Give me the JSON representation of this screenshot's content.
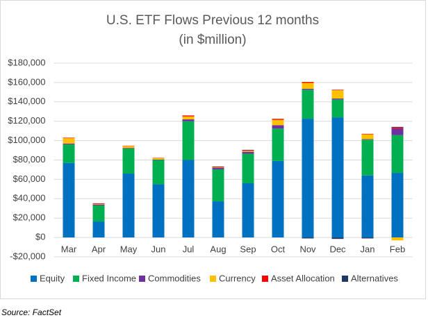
{
  "chart_data": {
    "type": "stacked_bar",
    "title": "U.S. ETF Flows Previous 12 months",
    "subtitle": "(in $million)",
    "source": "Source: FactSet",
    "categories": [
      "Mar",
      "Apr",
      "May",
      "Jun",
      "Jul",
      "Aug",
      "Sep",
      "Oct",
      "Nov",
      "Dec",
      "Jan",
      "Feb"
    ],
    "series": [
      {
        "name": "Equity",
        "color": "#0070c0",
        "values": [
          77000,
          16500,
          66000,
          55000,
          80000,
          37300,
          56000,
          79000,
          122600,
          124000,
          64000,
          66700
        ]
      },
      {
        "name": "Fixed Income",
        "color": "#00b050",
        "values": [
          19000,
          16500,
          26000,
          25000,
          40000,
          33000,
          30500,
          33500,
          30000,
          18500,
          37000,
          39000
        ]
      },
      {
        "name": "Commodities",
        "color": "#7030a0",
        "values": [
          1000,
          1000,
          500,
          500,
          2000,
          1500,
          2000,
          3500,
          1000,
          1000,
          500,
          7000
        ]
      },
      {
        "name": "Currency",
        "color": "#ffc000",
        "values": [
          5500,
          500,
          2000,
          1500,
          3000,
          500,
          1000,
          5500,
          6000,
          8500,
          5000,
          -3000
        ]
      },
      {
        "name": "Asset Allocation",
        "color": "#ff0000",
        "values": [
          500,
          500,
          300,
          300,
          1000,
          500,
          500,
          1000,
          1000,
          500,
          500,
          1000
        ]
      },
      {
        "name": "Alternatives",
        "color": "#1f3864",
        "values": [
          0,
          300,
          0,
          0,
          0,
          500,
          500,
          0,
          -1000,
          -1500,
          -1000,
          500
        ]
      }
    ],
    "ylim": [
      -20000,
      180000
    ],
    "yticks": [
      {
        "value": -20000,
        "label": "-$20,000"
      },
      {
        "value": 0,
        "label": "$0"
      },
      {
        "value": 20000,
        "label": "$20,000"
      },
      {
        "value": 40000,
        "label": "$40,000"
      },
      {
        "value": 60000,
        "label": "$60,000"
      },
      {
        "value": 80000,
        "label": "$80,000"
      },
      {
        "value": 100000,
        "label": "$100,000"
      },
      {
        "value": 120000,
        "label": "$120,000"
      },
      {
        "value": 140000,
        "label": "$140,000"
      },
      {
        "value": 160000,
        "label": "$160,000"
      },
      {
        "value": 180000,
        "label": "$180,000"
      }
    ],
    "grid": true,
    "legend": "bottom"
  }
}
